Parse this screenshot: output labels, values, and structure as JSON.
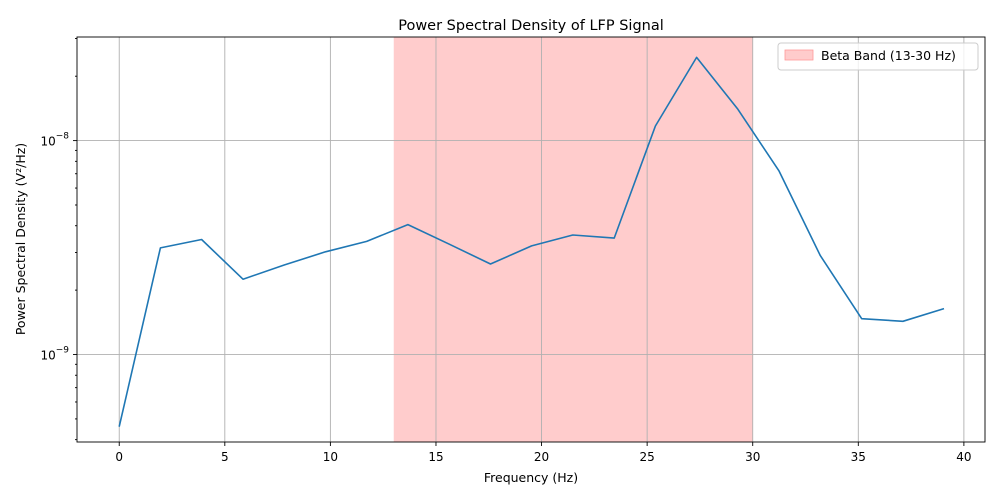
{
  "chart_data": {
    "type": "line",
    "title": "Power Spectral Density of LFP Signal",
    "xlabel": "Frequency (Hz)",
    "ylabel": "Power Spectral Density (V²/Hz)",
    "xlim": [
      -2,
      41
    ],
    "ylim": [
      3.9e-10,
      3.05e-08
    ],
    "yscale": "log",
    "grid": true,
    "legend_position": "top-right",
    "x_ticks": [
      0,
      5,
      10,
      15,
      20,
      25,
      30,
      35,
      40
    ],
    "x_tick_labels": [
      "0",
      "5",
      "10",
      "15",
      "20",
      "25",
      "30",
      "35",
      "40"
    ],
    "y_ticks": [
      1e-09,
      1e-08
    ],
    "y_tick_labels": [
      {
        "base": "10",
        "exp": "−9"
      },
      {
        "base": "10",
        "exp": "−8"
      }
    ],
    "band": {
      "name": "Beta Band (13-30 Hz)",
      "x0": 13,
      "x1": 30,
      "color": "#ffcccc"
    },
    "series": [
      {
        "color": "#1f77b4",
        "x": [
          0,
          1.95,
          3.9,
          5.86,
          7.81,
          9.77,
          11.72,
          13.67,
          15.63,
          17.58,
          19.53,
          21.48,
          23.44,
          25.39,
          27.34,
          29.3,
          31.25,
          33.2,
          35.16,
          37.11,
          39.06
        ],
        "y": [
          4.6e-10,
          3.15e-09,
          3.45e-09,
          2.25e-09,
          2.62e-09,
          3.02e-09,
          3.38e-09,
          4.05e-09,
          3.28e-09,
          2.65e-09,
          3.22e-09,
          3.62e-09,
          3.5e-09,
          1.17e-08,
          2.45e-08,
          1.4e-08,
          7.2e-09,
          2.9e-09,
          1.47e-09,
          1.43e-09,
          1.64e-09
        ]
      }
    ]
  }
}
